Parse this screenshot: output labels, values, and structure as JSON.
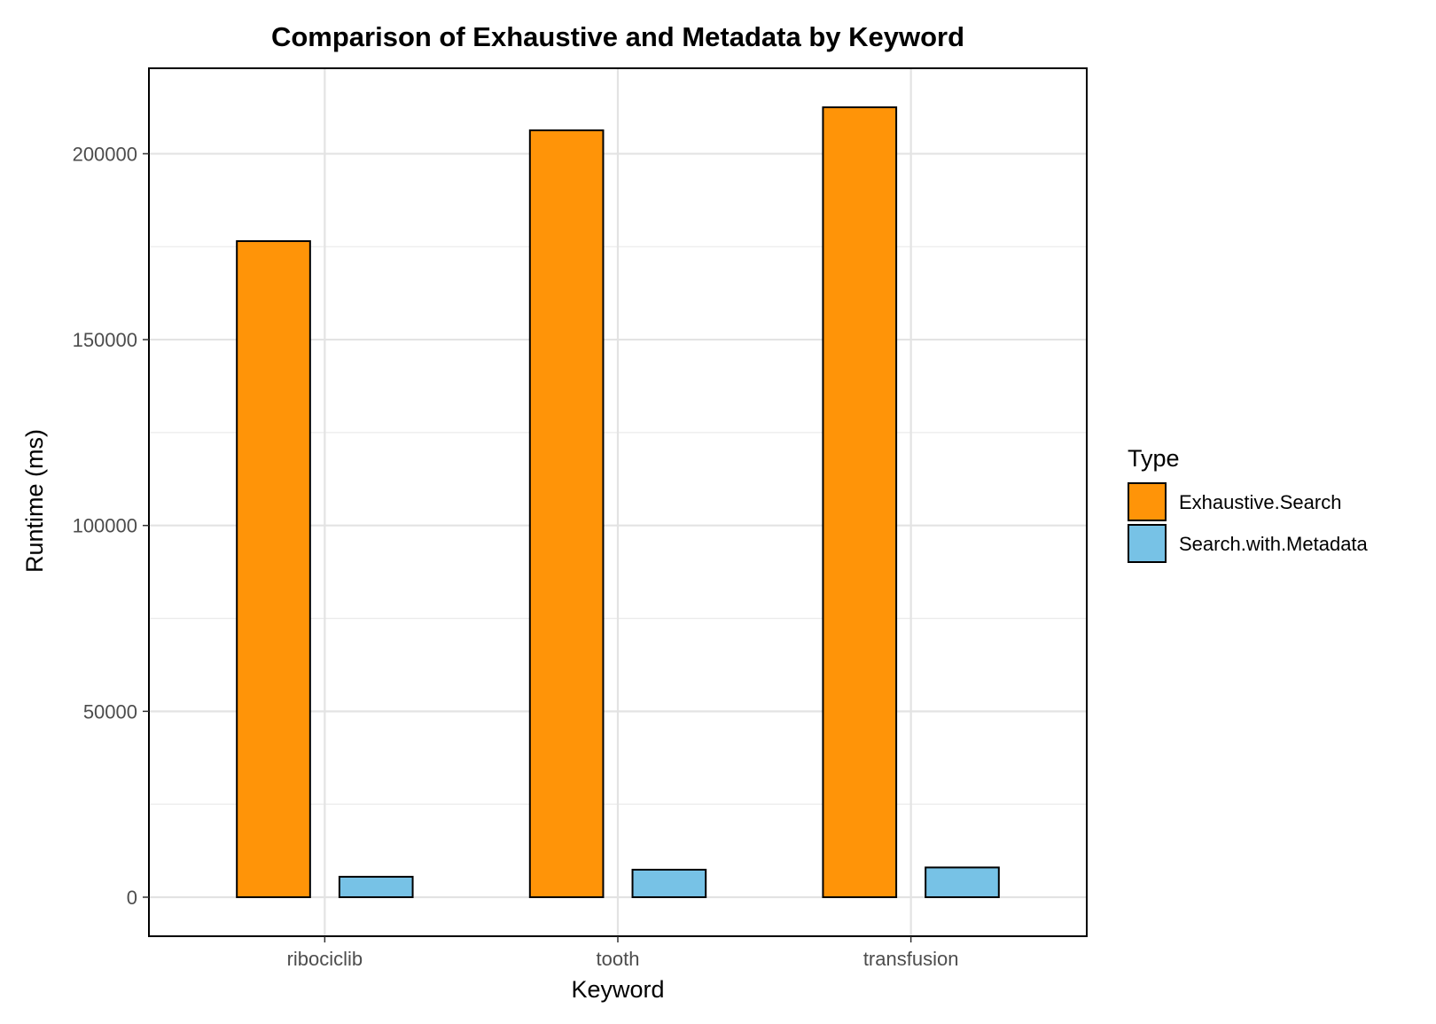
{
  "chart_data": {
    "type": "bar",
    "title": "Comparison of Exhaustive and Metadata by Keyword",
    "xlabel": "Keyword",
    "ylabel": "Runtime (ms)",
    "categories": [
      "ribociclib",
      "tooth",
      "transfusion"
    ],
    "series": [
      {
        "name": "Exhaustive.Search",
        "values": [
          176500,
          206300,
          212500
        ],
        "color": "#ff9408"
      },
      {
        "name": "Search.with.Metadata",
        "values": [
          5500,
          7400,
          8000
        ],
        "color": "#77c2e6"
      }
    ],
    "ylim": [
      -10500,
      223000
    ],
    "yticks": [
      0,
      50000,
      100000,
      150000,
      200000
    ],
    "ytick_labels": [
      "0",
      "50000",
      "100000",
      "150000",
      "200000"
    ],
    "grid": true,
    "legend": {
      "title": "Type",
      "position": "right"
    }
  }
}
